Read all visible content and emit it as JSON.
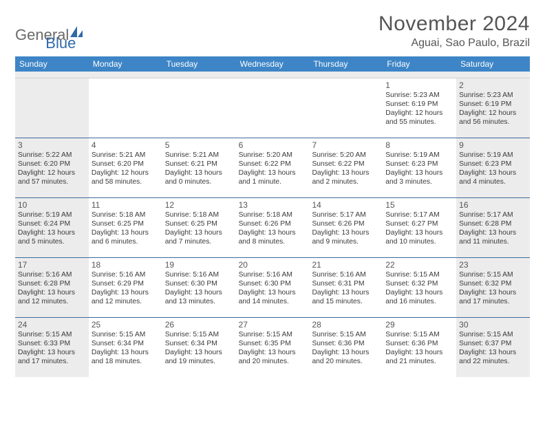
{
  "logo": {
    "part1": "General",
    "part2": "Blue"
  },
  "title": "November 2024",
  "subtitle": "Aguai, Sao Paulo, Brazil",
  "colors": {
    "header_bg": "#3d85c6",
    "header_text": "#ffffff",
    "week_border": "#3d6a9a",
    "shade_bg": "#ececec",
    "text": "#3a3a3a",
    "title_text": "#555555",
    "logo_gray": "#6a6a6a",
    "logo_blue": "#2f6aa8"
  },
  "day_names": [
    "Sunday",
    "Monday",
    "Tuesday",
    "Wednesday",
    "Thursday",
    "Friday",
    "Saturday"
  ],
  "weeks": [
    [
      {
        "day": "",
        "sunrise": "",
        "sunset": "",
        "daylight": "",
        "shade": true
      },
      {
        "day": "",
        "sunrise": "",
        "sunset": "",
        "daylight": "",
        "shade": false
      },
      {
        "day": "",
        "sunrise": "",
        "sunset": "",
        "daylight": "",
        "shade": false
      },
      {
        "day": "",
        "sunrise": "",
        "sunset": "",
        "daylight": "",
        "shade": false
      },
      {
        "day": "",
        "sunrise": "",
        "sunset": "",
        "daylight": "",
        "shade": false
      },
      {
        "day": "1",
        "sunrise": "Sunrise: 5:23 AM",
        "sunset": "Sunset: 6:19 PM",
        "daylight": "Daylight: 12 hours and 55 minutes.",
        "shade": false
      },
      {
        "day": "2",
        "sunrise": "Sunrise: 5:23 AM",
        "sunset": "Sunset: 6:19 PM",
        "daylight": "Daylight: 12 hours and 56 minutes.",
        "shade": true
      }
    ],
    [
      {
        "day": "3",
        "sunrise": "Sunrise: 5:22 AM",
        "sunset": "Sunset: 6:20 PM",
        "daylight": "Daylight: 12 hours and 57 minutes.",
        "shade": true
      },
      {
        "day": "4",
        "sunrise": "Sunrise: 5:21 AM",
        "sunset": "Sunset: 6:20 PM",
        "daylight": "Daylight: 12 hours and 58 minutes.",
        "shade": false
      },
      {
        "day": "5",
        "sunrise": "Sunrise: 5:21 AM",
        "sunset": "Sunset: 6:21 PM",
        "daylight": "Daylight: 13 hours and 0 minutes.",
        "shade": false
      },
      {
        "day": "6",
        "sunrise": "Sunrise: 5:20 AM",
        "sunset": "Sunset: 6:22 PM",
        "daylight": "Daylight: 13 hours and 1 minute.",
        "shade": false
      },
      {
        "day": "7",
        "sunrise": "Sunrise: 5:20 AM",
        "sunset": "Sunset: 6:22 PM",
        "daylight": "Daylight: 13 hours and 2 minutes.",
        "shade": false
      },
      {
        "day": "8",
        "sunrise": "Sunrise: 5:19 AM",
        "sunset": "Sunset: 6:23 PM",
        "daylight": "Daylight: 13 hours and 3 minutes.",
        "shade": false
      },
      {
        "day": "9",
        "sunrise": "Sunrise: 5:19 AM",
        "sunset": "Sunset: 6:23 PM",
        "daylight": "Daylight: 13 hours and 4 minutes.",
        "shade": true
      }
    ],
    [
      {
        "day": "10",
        "sunrise": "Sunrise: 5:19 AM",
        "sunset": "Sunset: 6:24 PM",
        "daylight": "Daylight: 13 hours and 5 minutes.",
        "shade": true
      },
      {
        "day": "11",
        "sunrise": "Sunrise: 5:18 AM",
        "sunset": "Sunset: 6:25 PM",
        "daylight": "Daylight: 13 hours and 6 minutes.",
        "shade": false
      },
      {
        "day": "12",
        "sunrise": "Sunrise: 5:18 AM",
        "sunset": "Sunset: 6:25 PM",
        "daylight": "Daylight: 13 hours and 7 minutes.",
        "shade": false
      },
      {
        "day": "13",
        "sunrise": "Sunrise: 5:18 AM",
        "sunset": "Sunset: 6:26 PM",
        "daylight": "Daylight: 13 hours and 8 minutes.",
        "shade": false
      },
      {
        "day": "14",
        "sunrise": "Sunrise: 5:17 AM",
        "sunset": "Sunset: 6:26 PM",
        "daylight": "Daylight: 13 hours and 9 minutes.",
        "shade": false
      },
      {
        "day": "15",
        "sunrise": "Sunrise: 5:17 AM",
        "sunset": "Sunset: 6:27 PM",
        "daylight": "Daylight: 13 hours and 10 minutes.",
        "shade": false
      },
      {
        "day": "16",
        "sunrise": "Sunrise: 5:17 AM",
        "sunset": "Sunset: 6:28 PM",
        "daylight": "Daylight: 13 hours and 11 minutes.",
        "shade": true
      }
    ],
    [
      {
        "day": "17",
        "sunrise": "Sunrise: 5:16 AM",
        "sunset": "Sunset: 6:28 PM",
        "daylight": "Daylight: 13 hours and 12 minutes.",
        "shade": true
      },
      {
        "day": "18",
        "sunrise": "Sunrise: 5:16 AM",
        "sunset": "Sunset: 6:29 PM",
        "daylight": "Daylight: 13 hours and 12 minutes.",
        "shade": false
      },
      {
        "day": "19",
        "sunrise": "Sunrise: 5:16 AM",
        "sunset": "Sunset: 6:30 PM",
        "daylight": "Daylight: 13 hours and 13 minutes.",
        "shade": false
      },
      {
        "day": "20",
        "sunrise": "Sunrise: 5:16 AM",
        "sunset": "Sunset: 6:30 PM",
        "daylight": "Daylight: 13 hours and 14 minutes.",
        "shade": false
      },
      {
        "day": "21",
        "sunrise": "Sunrise: 5:16 AM",
        "sunset": "Sunset: 6:31 PM",
        "daylight": "Daylight: 13 hours and 15 minutes.",
        "shade": false
      },
      {
        "day": "22",
        "sunrise": "Sunrise: 5:15 AM",
        "sunset": "Sunset: 6:32 PM",
        "daylight": "Daylight: 13 hours and 16 minutes.",
        "shade": false
      },
      {
        "day": "23",
        "sunrise": "Sunrise: 5:15 AM",
        "sunset": "Sunset: 6:32 PM",
        "daylight": "Daylight: 13 hours and 17 minutes.",
        "shade": true
      }
    ],
    [
      {
        "day": "24",
        "sunrise": "Sunrise: 5:15 AM",
        "sunset": "Sunset: 6:33 PM",
        "daylight": "Daylight: 13 hours and 17 minutes.",
        "shade": true
      },
      {
        "day": "25",
        "sunrise": "Sunrise: 5:15 AM",
        "sunset": "Sunset: 6:34 PM",
        "daylight": "Daylight: 13 hours and 18 minutes.",
        "shade": false
      },
      {
        "day": "26",
        "sunrise": "Sunrise: 5:15 AM",
        "sunset": "Sunset: 6:34 PM",
        "daylight": "Daylight: 13 hours and 19 minutes.",
        "shade": false
      },
      {
        "day": "27",
        "sunrise": "Sunrise: 5:15 AM",
        "sunset": "Sunset: 6:35 PM",
        "daylight": "Daylight: 13 hours and 20 minutes.",
        "shade": false
      },
      {
        "day": "28",
        "sunrise": "Sunrise: 5:15 AM",
        "sunset": "Sunset: 6:36 PM",
        "daylight": "Daylight: 13 hours and 20 minutes.",
        "shade": false
      },
      {
        "day": "29",
        "sunrise": "Sunrise: 5:15 AM",
        "sunset": "Sunset: 6:36 PM",
        "daylight": "Daylight: 13 hours and 21 minutes.",
        "shade": false
      },
      {
        "day": "30",
        "sunrise": "Sunrise: 5:15 AM",
        "sunset": "Sunset: 6:37 PM",
        "daylight": "Daylight: 13 hours and 22 minutes.",
        "shade": true
      }
    ]
  ]
}
